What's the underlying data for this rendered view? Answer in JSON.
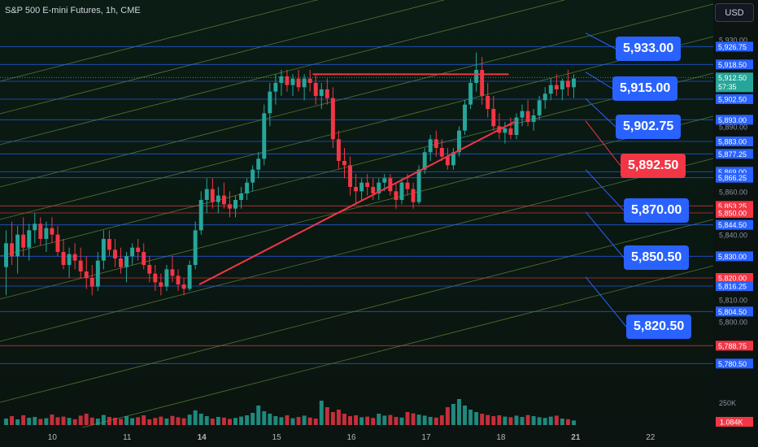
{
  "chart_data": {
    "type": "candlestick",
    "title": "S&P 500 E-mini Futures, 1h, CME",
    "currency": "USD",
    "ylim": [
      5772,
      5940
    ],
    "x_ticks": [
      {
        "label": "10",
        "index": 2
      },
      {
        "label": "11",
        "index": 31
      },
      {
        "label": "14",
        "index": 60
      },
      {
        "label": "15",
        "index": 89
      },
      {
        "label": "16",
        "index": 118
      },
      {
        "label": "17",
        "index": 147
      },
      {
        "label": "18",
        "index": 176
      },
      {
        "label": "21",
        "index": 205
      },
      {
        "label": "22",
        "index": 234
      }
    ],
    "y_ticks": [
      5930,
      5890,
      5860,
      5840,
      5810,
      5800
    ],
    "current_price": 5912.5,
    "countdown": "57:35",
    "volume_label": "250K",
    "volume_current": "1.084K",
    "candles": [
      [
        5825,
        5842,
        5812,
        5836
      ],
      [
        5836,
        5846,
        5826,
        5830
      ],
      [
        5830,
        5844,
        5822,
        5840
      ],
      [
        5840,
        5848,
        5830,
        5834
      ],
      [
        5834,
        5845,
        5828,
        5842
      ],
      [
        5842,
        5850,
        5836,
        5845
      ],
      [
        5845,
        5848,
        5835,
        5838
      ],
      [
        5838,
        5846,
        5832,
        5843
      ],
      [
        5843,
        5848,
        5836,
        5840
      ],
      [
        5840,
        5844,
        5830,
        5832
      ],
      [
        5832,
        5838,
        5824,
        5826
      ],
      [
        5826,
        5834,
        5820,
        5831
      ],
      [
        5831,
        5836,
        5824,
        5828
      ],
      [
        5828,
        5834,
        5820,
        5823
      ],
      [
        5823,
        5830,
        5815,
        5820
      ],
      [
        5820,
        5826,
        5812,
        5816
      ],
      [
        5816,
        5832,
        5814,
        5828
      ],
      [
        5828,
        5842,
        5824,
        5838
      ],
      [
        5838,
        5842,
        5830,
        5833
      ],
      [
        5833,
        5838,
        5825,
        5829
      ],
      [
        5829,
        5834,
        5822,
        5825
      ],
      [
        5825,
        5832,
        5818,
        5830
      ],
      [
        5830,
        5836,
        5826,
        5834
      ],
      [
        5834,
        5838,
        5828,
        5832
      ],
      [
        5832,
        5836,
        5824,
        5826
      ],
      [
        5826,
        5830,
        5818,
        5822
      ],
      [
        5822,
        5826,
        5814,
        5818
      ],
      [
        5818,
        5822,
        5812,
        5816
      ],
      [
        5816,
        5826,
        5814,
        5824
      ],
      [
        5824,
        5830,
        5818,
        5821
      ],
      [
        5821,
        5824,
        5814,
        5817
      ],
      [
        5817,
        5820,
        5812,
        5815
      ],
      [
        5815,
        5828,
        5814,
        5826
      ],
      [
        5826,
        5846,
        5824,
        5842
      ],
      [
        5842,
        5860,
        5840,
        5856
      ],
      [
        5856,
        5866,
        5850,
        5861
      ],
      [
        5861,
        5866,
        5852,
        5855
      ],
      [
        5855,
        5862,
        5850,
        5858
      ],
      [
        5858,
        5864,
        5852,
        5854
      ],
      [
        5854,
        5860,
        5848,
        5852
      ],
      [
        5852,
        5858,
        5848,
        5856
      ],
      [
        5856,
        5862,
        5852,
        5859
      ],
      [
        5859,
        5866,
        5856,
        5864
      ],
      [
        5864,
        5872,
        5860,
        5870
      ],
      [
        5870,
        5878,
        5866,
        5875
      ],
      [
        5875,
        5900,
        5872,
        5896
      ],
      [
        5896,
        5910,
        5890,
        5906
      ],
      [
        5906,
        5914,
        5900,
        5910
      ],
      [
        5910,
        5916,
        5904,
        5913
      ],
      [
        5913,
        5916,
        5906,
        5909
      ],
      [
        5909,
        5914,
        5904,
        5912
      ],
      [
        5912,
        5916,
        5906,
        5908
      ],
      [
        5908,
        5914,
        5902,
        5912
      ],
      [
        5912,
        5916,
        5906,
        5910
      ],
      [
        5910,
        5914,
        5900,
        5904
      ],
      [
        5904,
        5910,
        5898,
        5907
      ],
      [
        5907,
        5912,
        5900,
        5903
      ],
      [
        5903,
        5908,
        5880,
        5884
      ],
      [
        5884,
        5888,
        5870,
        5874
      ],
      [
        5874,
        5880,
        5866,
        5872
      ],
      [
        5872,
        5876,
        5858,
        5862
      ],
      [
        5862,
        5868,
        5854,
        5860
      ],
      [
        5860,
        5866,
        5856,
        5864
      ],
      [
        5864,
        5868,
        5858,
        5862
      ],
      [
        5862,
        5866,
        5856,
        5859
      ],
      [
        5859,
        5866,
        5856,
        5864
      ],
      [
        5864,
        5868,
        5860,
        5866
      ],
      [
        5866,
        5868,
        5858,
        5860
      ],
      [
        5860,
        5864,
        5852,
        5856
      ],
      [
        5856,
        5866,
        5854,
        5864
      ],
      [
        5864,
        5868,
        5858,
        5861
      ],
      [
        5861,
        5864,
        5852,
        5855
      ],
      [
        5855,
        5872,
        5854,
        5870
      ],
      [
        5870,
        5880,
        5868,
        5878
      ],
      [
        5878,
        5886,
        5874,
        5884
      ],
      [
        5884,
        5888,
        5876,
        5880
      ],
      [
        5880,
        5884,
        5874,
        5876
      ],
      [
        5876,
        5880,
        5870,
        5872
      ],
      [
        5872,
        5880,
        5870,
        5878
      ],
      [
        5878,
        5890,
        5876,
        5888
      ],
      [
        5888,
        5902,
        5886,
        5900
      ],
      [
        5900,
        5912,
        5898,
        5910
      ],
      [
        5910,
        5924,
        5906,
        5916
      ],
      [
        5916,
        5922,
        5900,
        5904
      ],
      [
        5904,
        5910,
        5894,
        5898
      ],
      [
        5898,
        5904,
        5888,
        5890
      ],
      [
        5890,
        5896,
        5884,
        5887
      ],
      [
        5887,
        5892,
        5882,
        5889
      ],
      [
        5889,
        5894,
        5884,
        5886
      ],
      [
        5886,
        5896,
        5884,
        5894
      ],
      [
        5894,
        5900,
        5890,
        5897
      ],
      [
        5897,
        5902,
        5890,
        5892
      ],
      [
        5892,
        5898,
        5888,
        5895
      ],
      [
        5895,
        5904,
        5893,
        5902
      ],
      [
        5902,
        5908,
        5898,
        5905
      ],
      [
        5905,
        5912,
        5902,
        5909
      ],
      [
        5909,
        5914,
        5904,
        5907
      ],
      [
        5907,
        5912,
        5902,
        5911
      ],
      [
        5911,
        5916,
        5904,
        5908
      ],
      [
        5908,
        5914,
        5903,
        5912
      ]
    ],
    "volumes": [
      40,
      55,
      35,
      60,
      45,
      50,
      38,
      42,
      65,
      48,
      52,
      44,
      36,
      58,
      70,
      46,
      40,
      62,
      50,
      45,
      38,
      55,
      42,
      48,
      60,
      35,
      44,
      52,
      40,
      56,
      48,
      42,
      64,
      90,
      70,
      55,
      40,
      50,
      46,
      38,
      44,
      52,
      60,
      75,
      120,
      85,
      70,
      55,
      48,
      60,
      42,
      50,
      58,
      46,
      40,
      150,
      110,
      80,
      95,
      70,
      55,
      60,
      48,
      52,
      44,
      70,
      58,
      62,
      50,
      46,
      80,
      72,
      64,
      58,
      50,
      46,
      60,
      110,
      130,
      160,
      120,
      95,
      80,
      70,
      62,
      55,
      60,
      52,
      48,
      58,
      50,
      62,
      55,
      48,
      44,
      52,
      58,
      40,
      36,
      28
    ]
  },
  "price_lines": [
    {
      "price": 5926.75,
      "label": "5,926.75",
      "color": "#2962ff"
    },
    {
      "price": 5918.5,
      "label": "5,918.50",
      "color": "#2962ff"
    },
    {
      "price": 5910.75,
      "label": "5,910.75",
      "color": "#2962ff"
    },
    {
      "price": 5902.5,
      "label": "5,902.50",
      "color": "#2962ff"
    },
    {
      "price": 5893.0,
      "label": "5,893.00",
      "color": "#2962ff"
    },
    {
      "price": 5883.0,
      "label": "5,883.00",
      "color": "#2962ff"
    },
    {
      "price": 5877.25,
      "label": "5,877.25",
      "color": "#2962ff"
    },
    {
      "price": 5869.0,
      "label": "5,869.00",
      "color": "#2962ff"
    },
    {
      "price": 5866.25,
      "label": "5,866.25",
      "color": "#2962ff"
    },
    {
      "price": 5853.25,
      "label": "5,853.25",
      "color": "#f23645"
    },
    {
      "price": 5850.0,
      "label": "5,850.00",
      "color": "#f23645"
    },
    {
      "price": 5844.5,
      "label": "5,844.50",
      "color": "#2962ff"
    },
    {
      "price": 5830.0,
      "label": "5,830.00",
      "color": "#2962ff"
    },
    {
      "price": 5820.0,
      "label": "5,820.00",
      "color": "#f23645"
    },
    {
      "price": 5816.25,
      "label": "5,816.25",
      "color": "#2962ff"
    },
    {
      "price": 5804.5,
      "label": "5,804.50",
      "color": "#2962ff"
    },
    {
      "price": 5788.75,
      "label": "5,788.75",
      "color": "#f23645"
    },
    {
      "price": 5780.5,
      "label": "5,780.50",
      "color": "#2962ff"
    }
  ],
  "callouts": [
    {
      "label": "5,933.00",
      "price": 5933.0,
      "variant": "blue"
    },
    {
      "label": "5,915.00",
      "price": 5915.0,
      "variant": "blue"
    },
    {
      "label": "5,902.75",
      "price": 5902.75,
      "variant": "blue"
    },
    {
      "label": "5,892.50",
      "price": 5892.5,
      "variant": "red"
    },
    {
      "label": "5,870.00",
      "price": 5870.0,
      "variant": "blue"
    },
    {
      "label": "5,850.50",
      "price": 5850.5,
      "variant": "blue"
    },
    {
      "label": "5,820.50",
      "price": 5820.5,
      "variant": "blue"
    }
  ],
  "trendlines": [
    {
      "from": [
        59,
        5817
      ],
      "to": [
        182,
        5892.5
      ],
      "color": "#f23645"
    },
    {
      "from": [
        103,
        5914
      ],
      "to": [
        179,
        5914
      ],
      "color": "#f23645"
    }
  ],
  "colors": {
    "up": "#26a69a",
    "down": "#f23645",
    "channel": "#8bc34a",
    "background": "#0b1410"
  }
}
